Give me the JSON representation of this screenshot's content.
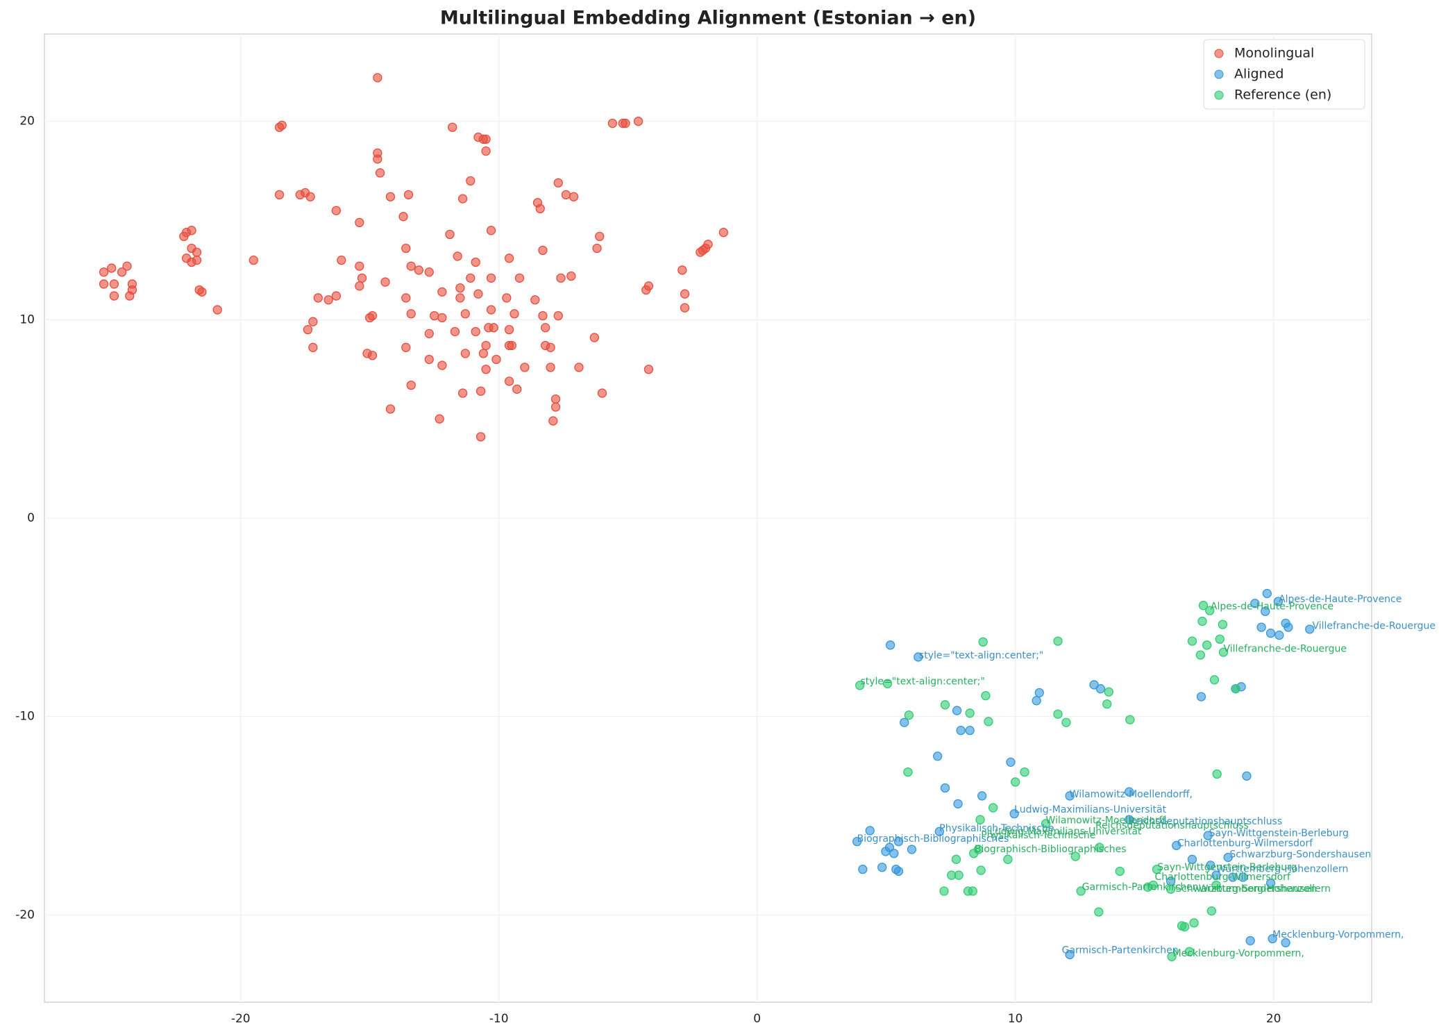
{
  "chart_data": {
    "type": "scatter",
    "title": "Multilingual Embedding Alignment (Estonian → en)",
    "xlim": [
      -27.6,
      23.8
    ],
    "ylim": [
      -24.4,
      24.4
    ],
    "xticks": [
      -20,
      -10,
      0,
      10,
      20
    ],
    "yticks": [
      -20,
      -10,
      0,
      10,
      20
    ],
    "grid": true,
    "legend": "upper right",
    "series": [
      {
        "name": "Monolingual",
        "color": "#e74c3c",
        "x": [
          -25.3,
          -25.3,
          -25.0,
          -24.9,
          -24.9,
          -24.6,
          -24.4,
          -24.3,
          -24.2,
          -24.2,
          -22.2,
          -22.1,
          -22.1,
          -21.9,
          -21.9,
          -21.9,
          -21.7,
          -21.7,
          -21.6,
          -21.5,
          -20.9,
          -19.5,
          -18.5,
          -18.4,
          -18.5,
          -17.7,
          -17.5,
          -17.3,
          -17.4,
          -17.2,
          -17.2,
          -17.0,
          -16.3,
          -16.6,
          -16.3,
          -16.1,
          -15.4,
          -15.4,
          -15.3,
          -15.4,
          -15.0,
          -14.9,
          -14.9,
          -15.1,
          -14.7,
          -14.7,
          -14.7,
          -14.6,
          -14.4,
          -14.2,
          -13.7,
          -13.5,
          -13.6,
          -13.6,
          -13.4,
          -13.4,
          -13.6,
          -13.4,
          -14.2,
          -13.1,
          -12.7,
          -12.7,
          -12.7,
          -12.5,
          -12.3,
          -12.2,
          -12.2,
          -12.2,
          -11.9,
          -11.8,
          -11.7,
          -11.6,
          -11.5,
          -11.4,
          -11.4,
          -11.5,
          -11.3,
          -11.3,
          -11.1,
          -11.1,
          -10.9,
          -10.9,
          -10.8,
          -10.8,
          -10.7,
          -10.7,
          -10.6,
          -10.6,
          -10.5,
          -10.5,
          -10.5,
          -10.5,
          -10.4,
          -10.3,
          -10.3,
          -10.3,
          -10.2,
          -10.1,
          -9.7,
          -9.6,
          -9.6,
          -9.6,
          -9.6,
          -9.5,
          -9.4,
          -9.3,
          -9.2,
          -9.0,
          -8.6,
          -8.5,
          -8.4,
          -8.3,
          -8.3,
          -8.2,
          -8.2,
          -8.0,
          -8.0,
          -7.9,
          -7.8,
          -7.8,
          -7.7,
          -7.7,
          -7.6,
          -7.4,
          -7.2,
          -7.1,
          -6.9,
          -6.3,
          -6.2,
          -6.1,
          -6.0,
          -5.6,
          -5.2,
          -5.1,
          -4.6,
          -4.3,
          -4.2,
          -4.2,
          -2.9,
          -2.8,
          -2.8,
          -2.2,
          -2.1,
          -2.0,
          -1.9,
          -1.3
        ],
        "y": [
          12.4,
          11.8,
          12.6,
          11.8,
          11.2,
          12.4,
          12.7,
          11.2,
          11.8,
          11.5,
          14.2,
          14.4,
          13.1,
          13.6,
          12.9,
          14.5,
          13.0,
          13.4,
          11.5,
          11.4,
          10.5,
          13.0,
          19.7,
          19.8,
          16.3,
          16.3,
          16.4,
          16.2,
          9.5,
          9.9,
          8.6,
          11.1,
          15.5,
          11.0,
          11.2,
          13.0,
          14.9,
          12.7,
          12.1,
          11.7,
          10.1,
          10.2,
          8.2,
          8.3,
          22.2,
          18.4,
          18.1,
          17.4,
          11.9,
          16.2,
          15.2,
          16.3,
          13.6,
          11.1,
          12.7,
          10.3,
          8.6,
          6.7,
          5.5,
          12.5,
          12.4,
          9.3,
          8.0,
          10.2,
          5.0,
          11.4,
          7.7,
          10.1,
          14.3,
          19.7,
          9.4,
          13.2,
          11.6,
          6.3,
          16.1,
          11.1,
          10.3,
          8.3,
          17.0,
          12.1,
          12.9,
          9.4,
          11.3,
          19.2,
          6.4,
          4.1,
          19.1,
          8.3,
          8.7,
          7.5,
          18.5,
          19.1,
          9.6,
          10.5,
          14.5,
          12.1,
          9.6,
          8.0,
          11.1,
          8.7,
          13.1,
          9.5,
          6.9,
          8.7,
          10.3,
          6.5,
          12.1,
          7.6,
          11.0,
          15.9,
          15.6,
          13.5,
          10.2,
          9.6,
          8.7,
          8.6,
          7.6,
          4.9,
          6.0,
          5.6,
          10.2,
          16.9,
          12.1,
          16.3,
          12.2,
          16.2,
          7.6,
          9.1,
          13.6,
          14.2,
          6.3,
          19.9,
          19.9,
          19.9,
          20.0,
          11.5,
          11.7,
          7.5,
          12.5,
          11.3,
          10.6,
          13.4,
          13.5,
          13.6,
          13.8,
          14.4
        ]
      },
      {
        "name": "Aligned",
        "color": "#3498db",
        "x": [
          3.87,
          4.09,
          4.37,
          4.84,
          4.98,
          5.13,
          5.3,
          5.38,
          5.48,
          5.48,
          5.7,
          5.99,
          5.16,
          6.24,
          6.99,
          7.06,
          7.28,
          7.74,
          7.78,
          7.89,
          8.24,
          8.71,
          9.82,
          9.96,
          10.82,
          10.93,
          12.11,
          12.11,
          13.05,
          13.3,
          14.41,
          14.41,
          16.24,
          16.85,
          17.2,
          17.46,
          17.56,
          17.78,
          18.24,
          18.42,
          18.82,
          18.96,
          18.53,
          18.75,
          19.28,
          19.53,
          19.68,
          19.75,
          19.89,
          20.18,
          20.22,
          20.47,
          20.57,
          21.4,
          19.89,
          19.96,
          19.1,
          20.47,
          16.02
        ],
        "y": [
          -16.3,
          -17.7,
          -15.75,
          -17.6,
          -16.8,
          -16.6,
          -16.9,
          -17.7,
          -16.3,
          -17.8,
          -10.3,
          -16.7,
          -6.4,
          -7.0,
          -12.0,
          -15.8,
          -13.6,
          -9.7,
          -14.4,
          -10.7,
          -10.7,
          -14.0,
          -12.3,
          -14.9,
          -9.2,
          -8.8,
          -22.0,
          -14.0,
          -8.4,
          -8.6,
          -13.8,
          -15.2,
          -16.5,
          -17.2,
          -9.0,
          -16.0,
          -17.5,
          -18.0,
          -17.1,
          -18.1,
          -18.1,
          -13.0,
          -8.6,
          -8.5,
          -4.3,
          -5.5,
          -4.7,
          -3.8,
          -5.8,
          -4.2,
          -5.9,
          -5.3,
          -5.5,
          -5.6,
          -18.4,
          -21.2,
          -21.3,
          -21.4,
          -18.3
        ]
      },
      {
        "name": "Reference (en)",
        "color": "#2ecc71",
        "x": [
          3.98,
          5.05,
          5.88,
          5.84,
          7.28,
          7.71,
          7.53,
          7.81,
          7.24,
          8.17,
          8.35,
          8.24,
          8.39,
          8.57,
          8.64,
          8.67,
          8.75,
          8.85,
          8.96,
          9.14,
          9.71,
          10.0,
          10.36,
          11.18,
          11.65,
          11.65,
          11.97,
          12.33,
          12.54,
          13.26,
          13.23,
          13.62,
          13.55,
          14.05,
          14.44,
          15.48,
          15.34,
          16.02,
          16.45,
          16.56,
          16.92,
          16.74,
          16.85,
          17.17,
          17.24,
          17.28,
          17.42,
          17.53,
          17.71,
          17.78,
          17.81,
          17.92,
          18.03,
          18.06,
          18.53,
          17.6,
          16.06,
          15.13
        ],
        "y": [
          -8.43,
          -8.34,
          -9.93,
          -12.8,
          -9.41,
          -17.2,
          -18.0,
          -18.0,
          -18.8,
          -18.8,
          -18.8,
          -9.83,
          -16.9,
          -16.7,
          -15.2,
          -17.75,
          -6.24,
          -8.95,
          -10.25,
          -14.6,
          -17.2,
          -13.3,
          -12.8,
          -15.4,
          -9.88,
          -6.2,
          -10.3,
          -17.05,
          -18.8,
          -16.6,
          -19.85,
          -8.76,
          -9.37,
          -17.8,
          -10.16,
          -17.7,
          -18.5,
          -18.7,
          -20.55,
          -20.6,
          -20.4,
          -21.85,
          -6.2,
          -6.9,
          -5.2,
          -4.4,
          -6.4,
          -4.66,
          -8.15,
          -18.5,
          -12.9,
          -6.1,
          -5.36,
          -6.76,
          -8.6,
          -19.8,
          -22.1,
          -18.6
        ]
      }
    ],
    "annotations": [
      {
        "text": "Alpes-de-Haute-Provence",
        "x": 20.2,
        "y": -4.1,
        "color": "#3a8fc4"
      },
      {
        "text": "Villefranche-de-Rouergue",
        "x": 21.5,
        "y": -5.45,
        "color": "#3a8fc4"
      },
      {
        "text": "style=\"text-align:center;\"",
        "x": 6.27,
        "y": -6.94,
        "color": "#3a8fc4"
      },
      {
        "text": "Wilamowitz-Moellendorff,",
        "x": 12.1,
        "y": -13.93,
        "color": "#3a8fc4"
      },
      {
        "text": "Ludwig-Maximilians-Universität",
        "x": 9.96,
        "y": -14.7,
        "color": "#3a8fc4"
      },
      {
        "text": "Physikalisch-Technische",
        "x": 7.06,
        "y": -15.65,
        "color": "#3a8fc4"
      },
      {
        "text": "Biographisch-Bibliographisches",
        "x": 3.87,
        "y": -16.17,
        "color": "#3a8fc4"
      },
      {
        "text": "Reichsdeputationshauptschluss",
        "x": 14.4,
        "y": -15.3,
        "color": "#3a8fc4"
      },
      {
        "text": "Sayn-Wittgenstein-Berleburg",
        "x": 17.5,
        "y": -15.9,
        "color": "#3a8fc4"
      },
      {
        "text": "Charlottenburg-Wilmersdorf",
        "x": 16.27,
        "y": -16.4,
        "color": "#3a8fc4"
      },
      {
        "text": "Schwarzburg-Sondershausen",
        "x": 18.3,
        "y": -16.96,
        "color": "#3a8fc4"
      },
      {
        "text": "Württemberg-Hohenzollern",
        "x": 17.78,
        "y": -17.7,
        "color": "#3a8fc4"
      },
      {
        "text": "Mecklenburg-Vorpommern,",
        "x": 19.96,
        "y": -21.0,
        "color": "#3a8fc4"
      },
      {
        "text": "Garmisch-Partenkirchen",
        "x": 11.8,
        "y": -21.8,
        "color": "#3a8fc4"
      },
      {
        "text": "Alpes-de-Haute-Provence",
        "x": 17.56,
        "y": -4.47,
        "color": "#27ae60"
      },
      {
        "text": "Villefranche-de-Rouergue",
        "x": 18.06,
        "y": -6.6,
        "color": "#27ae60"
      },
      {
        "text": "style=\"text-align:center;\"",
        "x": 4.0,
        "y": -8.25,
        "color": "#27ae60"
      },
      {
        "text": "Wilamowitz-Moellendorff,",
        "x": 11.18,
        "y": -15.24,
        "color": "#27ae60"
      },
      {
        "text": "Reichsdeputationshauptschluss",
        "x": 13.1,
        "y": -15.5,
        "color": "#27ae60"
      },
      {
        "text": "Ludwig-Maximilians-Universität",
        "x": 9.0,
        "y": -15.8,
        "color": "#27ae60"
      },
      {
        "text": "Physikalisch-Technische",
        "x": 8.67,
        "y": -16.0,
        "color": "#27ae60"
      },
      {
        "text": "Biographisch-Bibliographisches",
        "x": 8.42,
        "y": -16.7,
        "color": "#27ae60"
      },
      {
        "text": "Sayn-Wittgenstein-Berleburg",
        "x": 15.5,
        "y": -17.6,
        "color": "#27ae60"
      },
      {
        "text": "Charlottenburg-Wilmersdorf",
        "x": 15.4,
        "y": -18.1,
        "color": "#27ae60"
      },
      {
        "text": "Schwarzburg-Sondershausen",
        "x": 16.2,
        "y": -18.7,
        "color": "#27ae60"
      },
      {
        "text": "Württemberg-Hohenzollern",
        "x": 17.1,
        "y": -18.7,
        "color": "#27ae60"
      },
      {
        "text": "Garmisch-Partenkirchen",
        "x": 12.58,
        "y": -18.6,
        "color": "#27ae60"
      },
      {
        "text": "Mecklenburg-Vorpommern,",
        "x": 16.1,
        "y": -21.95,
        "color": "#27ae60"
      }
    ]
  }
}
